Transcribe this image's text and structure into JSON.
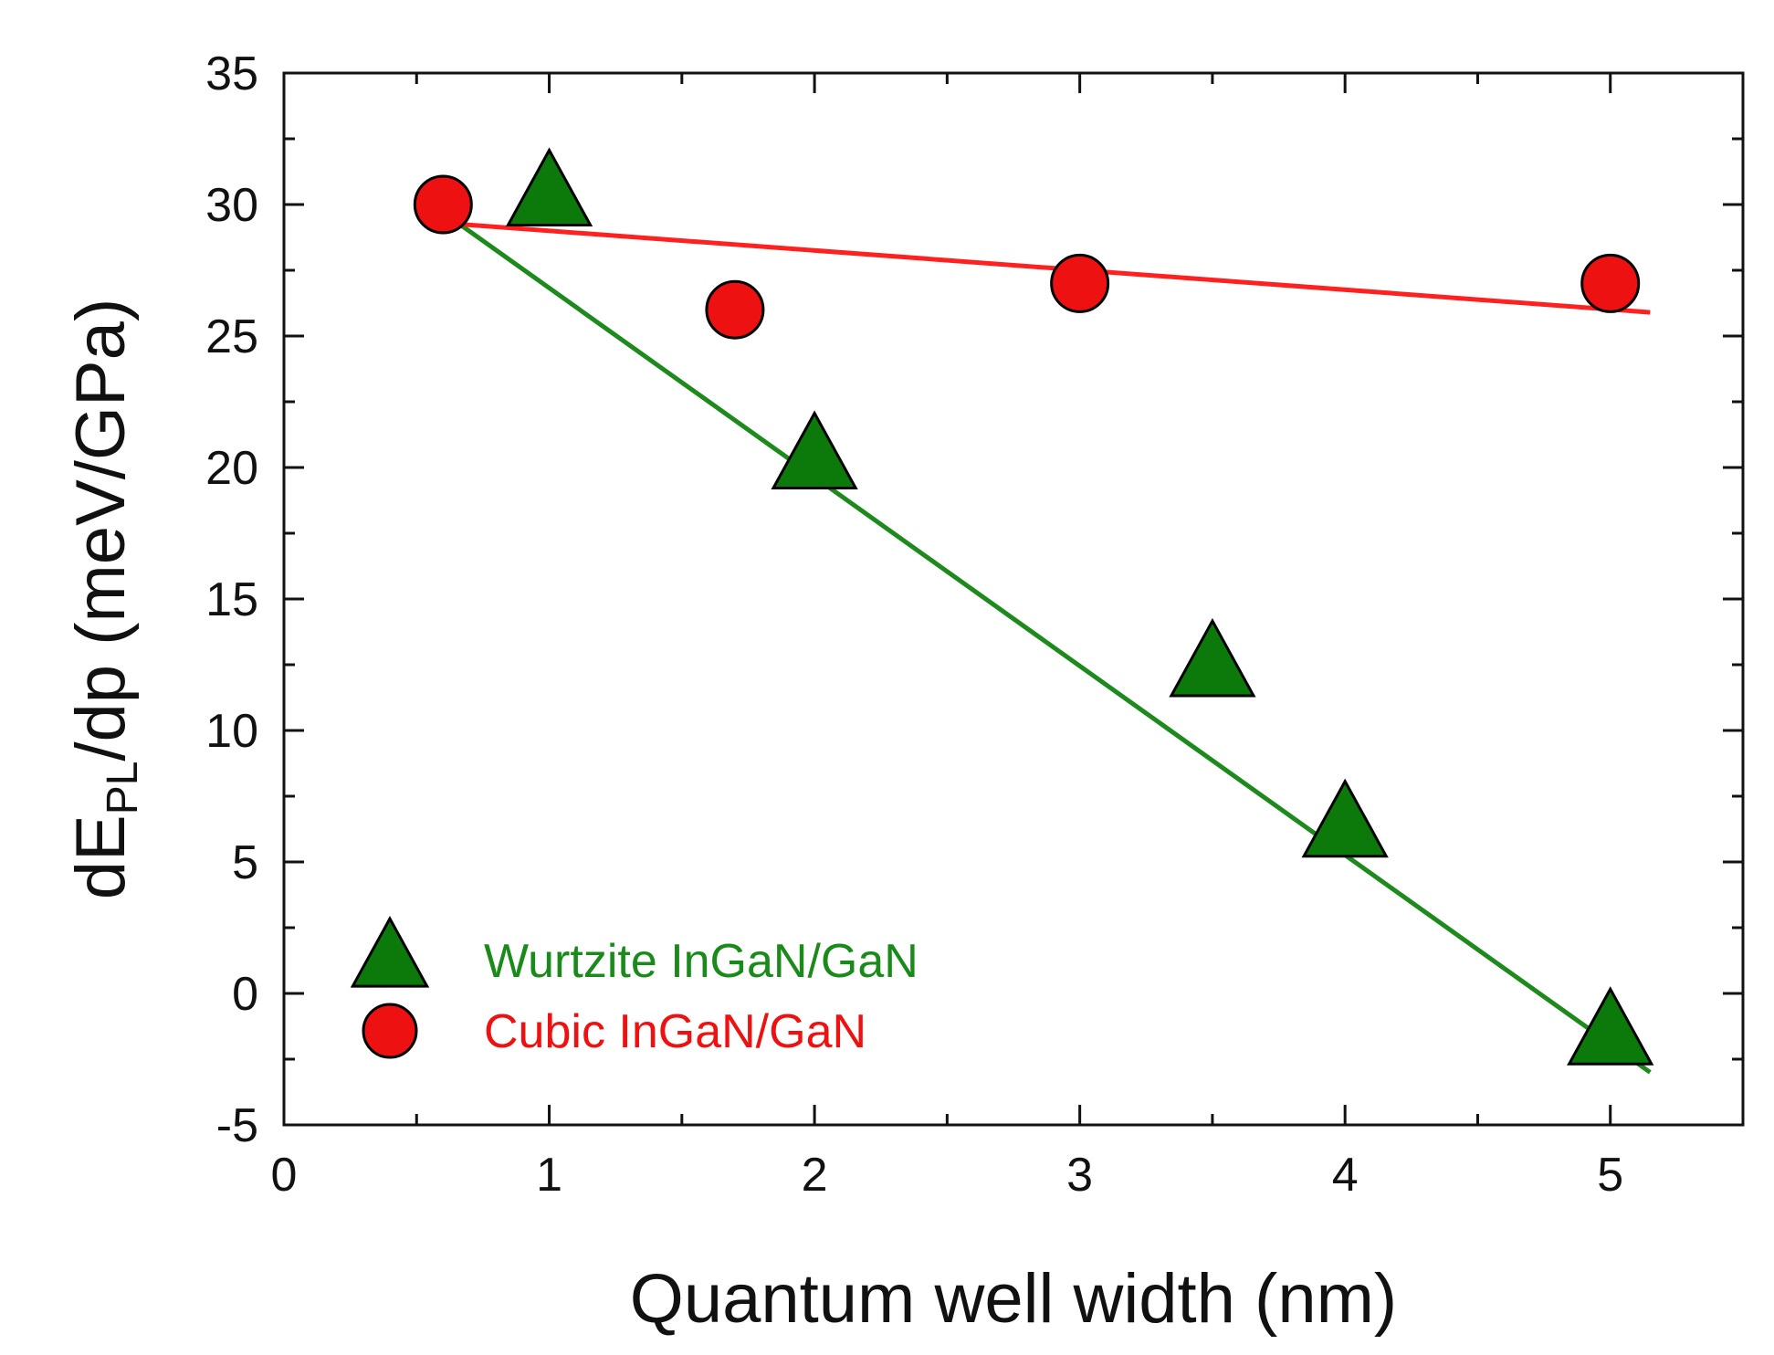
{
  "chart_data": {
    "type": "scatter",
    "title": "",
    "xlabel": "Quantum well width (nm)",
    "ylabel": {
      "main": "dE",
      "sub": "PL",
      "rest": "/dp (meV/GPa)"
    },
    "xlim": [
      0,
      5.5
    ],
    "ylim": [
      -5,
      35
    ],
    "xticks": [
      0,
      1,
      2,
      3,
      4,
      5
    ],
    "yticks": [
      -5,
      0,
      5,
      10,
      15,
      20,
      25,
      30,
      35
    ],
    "grid": false,
    "legend_position": "bottom-left",
    "series": [
      {
        "name": "Wurtzite InGaN/GaN",
        "marker": "triangle",
        "color": "#0b7a0b",
        "points": [
          {
            "x": 1.0,
            "y": 30.3
          },
          {
            "x": 2.0,
            "y": 20.3
          },
          {
            "x": 3.5,
            "y": 12.4
          },
          {
            "x": 4.0,
            "y": 6.3
          },
          {
            "x": 5.0,
            "y": -1.6
          }
        ],
        "fit": {
          "x": [
            0.6,
            5.15
          ],
          "y": [
            29.7,
            -3.0
          ]
        }
      },
      {
        "name": "Cubic InGaN/GaN",
        "marker": "circle",
        "color": "#ee1111",
        "points": [
          {
            "x": 0.6,
            "y": 30.0
          },
          {
            "x": 1.7,
            "y": 26.0
          },
          {
            "x": 3.0,
            "y": 27.0
          },
          {
            "x": 5.0,
            "y": 27.0
          }
        ],
        "fit": {
          "x": [
            0.6,
            5.15
          ],
          "y": [
            29.3,
            25.9
          ]
        }
      }
    ]
  }
}
